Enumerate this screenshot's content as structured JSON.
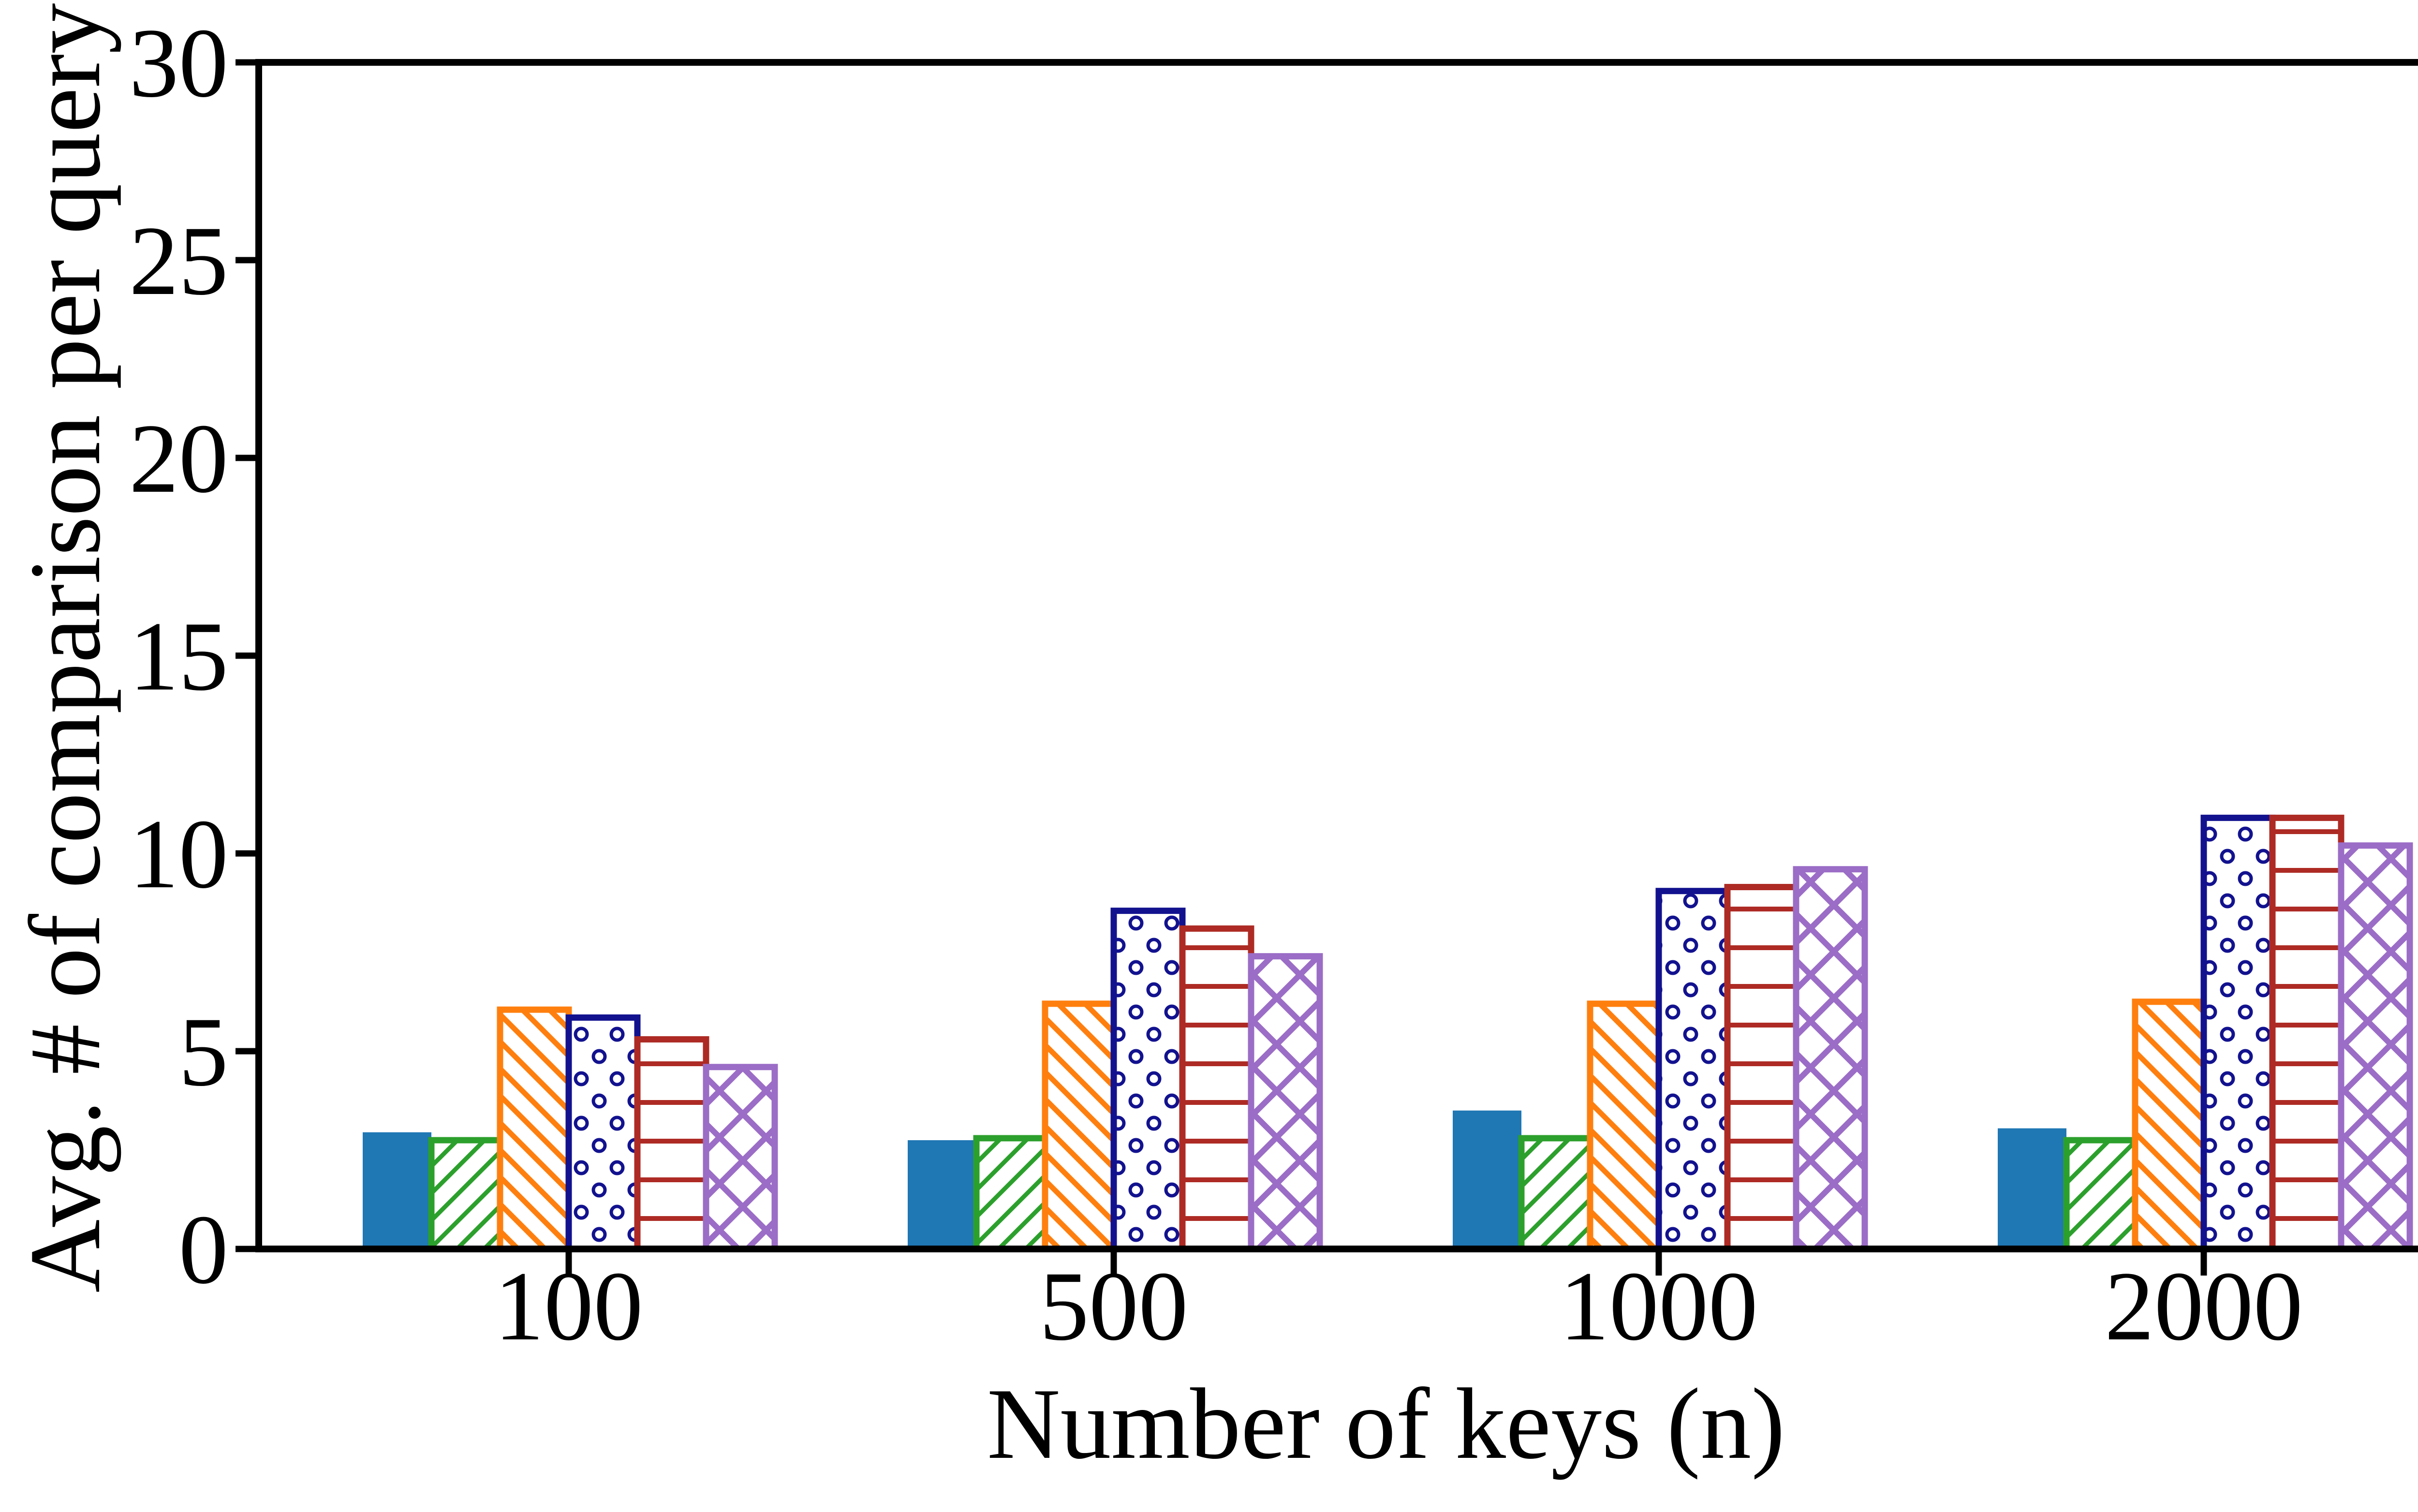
{
  "figure": {
    "background": "#ffffff"
  },
  "chart_data": {
    "type": "bar",
    "title": "",
    "xlabel": "Number of keys (n)",
    "ylabel": "Avg. # of comparison per query",
    "categories": [
      "100",
      "500",
      "1000",
      "2000"
    ],
    "series": [
      {
        "name": "solid-blue-bar",
        "pattern": "solid",
        "color": "#1f77b4",
        "values": [
          2.95,
          2.75,
          3.5,
          3.05
        ]
      },
      {
        "name": "green-diagonal-hatch-bar",
        "pattern": "diag-up",
        "color": "#2ca02c",
        "values": [
          2.75,
          2.8,
          2.8,
          2.75
        ]
      },
      {
        "name": "orange-diagonal-hatch-bar",
        "pattern": "diag-down",
        "color": "#ff7f0e",
        "values": [
          6.05,
          6.2,
          6.2,
          6.25
        ]
      },
      {
        "name": "navy-circle-hatch-bar",
        "pattern": "dots",
        "color": "#12128f",
        "values": [
          5.85,
          8.55,
          9.05,
          10.9
        ]
      },
      {
        "name": "darkred-hline-hatch-bar",
        "pattern": "hlines",
        "color": "#ad2b24",
        "values": [
          5.3,
          8.1,
          9.15,
          10.9
        ]
      },
      {
        "name": "purple-crosshatch-bar",
        "pattern": "cross",
        "color": "#9b6dc6",
        "values": [
          4.6,
          7.4,
          9.6,
          10.2
        ]
      }
    ],
    "ylim": [
      0,
      30
    ],
    "yticks": [
      0,
      5,
      10,
      15,
      20,
      25,
      30
    ],
    "grid": false,
    "legend": "none",
    "axis_color": "#000000"
  }
}
